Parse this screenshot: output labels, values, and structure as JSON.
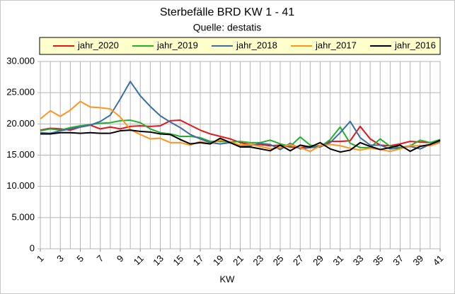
{
  "chart_data": {
    "type": "line",
    "title": "Sterbefälle BRD  KW 1 - 41",
    "subtitle": "Quelle: destatis",
    "x_label": "KW",
    "x": [
      1,
      2,
      3,
      4,
      5,
      6,
      7,
      8,
      9,
      10,
      11,
      12,
      13,
      14,
      15,
      16,
      17,
      18,
      19,
      20,
      21,
      22,
      23,
      24,
      25,
      26,
      27,
      28,
      29,
      30,
      31,
      32,
      33,
      34,
      35,
      36,
      37,
      38,
      39,
      40,
      41
    ],
    "xlim": [
      1,
      41
    ],
    "xticks": [
      1,
      3,
      5,
      7,
      9,
      11,
      13,
      15,
      17,
      19,
      21,
      23,
      25,
      27,
      29,
      31,
      33,
      35,
      37,
      39,
      41
    ],
    "ylim": [
      0,
      30000
    ],
    "yticks": [
      0,
      {
        "value": 5000,
        "label": "5.000"
      },
      {
        "value": 10000,
        "label": "10.000"
      },
      {
        "value": 15000,
        "label": "15.000"
      },
      {
        "value": 20000,
        "label": "20.000"
      },
      {
        "value": 25000,
        "label": "25.000"
      },
      {
        "value": 30000,
        "label": "30.000"
      }
    ],
    "grid": true,
    "legend": "top",
    "series": [
      {
        "name": "jahr_2020",
        "color": "#e8141a",
        "values": [
          19000,
          19300,
          19200,
          19000,
          19500,
          19800,
          19200,
          19500,
          19200,
          19600,
          19700,
          19600,
          19700,
          20500,
          20600,
          19800,
          19000,
          18400,
          18000,
          17600,
          17000,
          16700,
          16700,
          16500,
          16600,
          16300,
          16200,
          16400,
          16500,
          17200,
          17200,
          17300,
          19600,
          17600,
          16600,
          16500,
          16800,
          17200,
          17100,
          17000,
          17200
        ]
      },
      {
        "name": "jahr_2019",
        "color": "#22b02e",
        "values": [
          18900,
          19200,
          19000,
          19400,
          19700,
          19900,
          20100,
          20200,
          20500,
          20600,
          20200,
          19200,
          18600,
          18400,
          18000,
          18000,
          17800,
          17200,
          17200,
          17100,
          17200,
          17000,
          17000,
          17400,
          16800,
          16400,
          17900,
          16600,
          16300,
          17500,
          19500,
          16900,
          16200,
          16200,
          17600,
          16400,
          16200,
          16500,
          17400,
          17000,
          17500
        ]
      },
      {
        "name": "jahr_2018",
        "color": "#3a6ea5",
        "values": [
          18600,
          18500,
          18900,
          19200,
          19500,
          19800,
          20400,
          21400,
          24000,
          26800,
          24500,
          22800,
          21300,
          20300,
          19400,
          18300,
          17600,
          17000,
          16800,
          17000,
          16400,
          16500,
          16900,
          16700,
          15900,
          16900,
          16000,
          16200,
          16300,
          17000,
          18600,
          20400,
          17800,
          16600,
          16600,
          16000,
          16100,
          16400,
          16000,
          16700,
          17200
        ]
      },
      {
        "name": "jahr_2017",
        "color": "#ff951c",
        "values": [
          20800,
          22100,
          21200,
          22200,
          23600,
          22700,
          22600,
          22400,
          21100,
          19100,
          18300,
          17600,
          17700,
          17000,
          17000,
          16600,
          17200,
          16800,
          17400,
          17100,
          16600,
          16700,
          16400,
          16000,
          16200,
          16700,
          16200,
          15600,
          16500,
          16700,
          16500,
          16100,
          15800,
          16100,
          15900,
          15600,
          16000,
          16500,
          16500,
          16500,
          17000
        ]
      },
      {
        "name": "jahr_2016",
        "color": "#000000",
        "values": [
          18400,
          18400,
          18600,
          18600,
          18500,
          18600,
          18500,
          18500,
          18900,
          19000,
          18800,
          18700,
          18400,
          18300,
          17500,
          16800,
          17000,
          16800,
          17700,
          17000,
          16300,
          16300,
          16000,
          15700,
          16600,
          15700,
          16600,
          16300,
          17000,
          16000,
          15500,
          15800,
          17000,
          16400,
          15900,
          16200,
          16600,
          15600,
          16400,
          16700,
          17400
        ]
      }
    ]
  }
}
